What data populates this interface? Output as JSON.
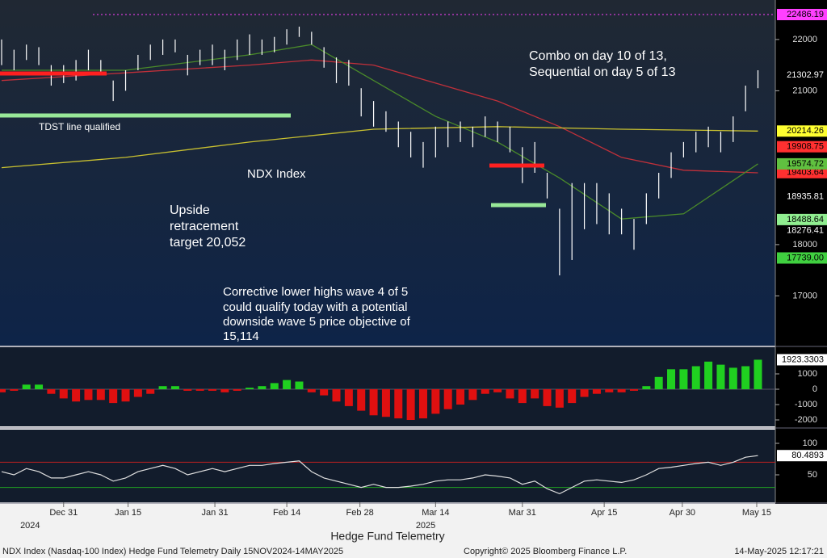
{
  "chart_data": [
    {
      "type": "ohlc",
      "title": "NDX Index",
      "x": [
        0,
        1,
        2,
        3,
        4,
        5,
        6,
        7,
        8,
        9,
        10,
        11,
        12,
        13,
        14,
        15,
        16,
        17,
        18,
        19,
        20,
        21,
        22,
        23,
        24,
        25,
        26,
        27,
        28,
        29,
        30,
        31,
        32,
        33,
        34,
        35,
        36,
        37,
        38,
        39,
        40,
        41,
        42,
        43,
        44,
        45,
        46,
        47,
        48,
        49,
        50,
        51,
        52,
        53,
        54,
        55,
        56,
        57,
        58,
        59,
        60,
        61
      ],
      "high": [
        22000,
        21800,
        21900,
        21850,
        21500,
        21500,
        21600,
        21800,
        21600,
        21200,
        21400,
        21700,
        21900,
        22000,
        22000,
        21700,
        21800,
        21900,
        21800,
        22000,
        22100,
        22000,
        22050,
        22200,
        22250,
        22150,
        21850,
        21650,
        21600,
        21050,
        20800,
        20600,
        20400,
        20200,
        20000,
        20300,
        20400,
        20400,
        20300,
        20500,
        20400,
        20300,
        19900,
        20000,
        19400,
        18700,
        19200,
        19200,
        19200,
        19000,
        18700,
        18500,
        19000,
        19400,
        19800,
        20000,
        20200,
        20300,
        20200,
        20500,
        21100,
        21400
      ],
      "low": [
        21500,
        21400,
        21600,
        21500,
        21100,
        21150,
        21200,
        21400,
        21300,
        20800,
        21000,
        21400,
        21600,
        21700,
        21750,
        21300,
        21500,
        21500,
        21400,
        21600,
        21700,
        21700,
        21750,
        21900,
        22050,
        21900,
        21450,
        21150,
        21100,
        20500,
        20300,
        20200,
        19900,
        19700,
        19500,
        19700,
        19900,
        20000,
        19900,
        20100,
        20000,
        19800,
        19200,
        19400,
        18900,
        17400,
        17700,
        18300,
        18400,
        18200,
        18200,
        17900,
        18400,
        18900,
        19300,
        19700,
        19800,
        19900,
        19800,
        20000,
        20600,
        21050
      ],
      "color": "#ffffff",
      "series": [
        {
          "color": "#c0303a",
          "x": [
            0,
            10,
            20,
            25,
            30,
            40,
            45,
            50,
            55,
            61
          ],
          "values": [
            21200,
            21350,
            21500,
            21600,
            21500,
            20800,
            20300,
            19700,
            19450,
            19400
          ]
        },
        {
          "color": "#4a8a2a",
          "x": [
            0,
            10,
            20,
            25,
            30,
            35,
            40,
            45,
            50,
            55,
            61
          ],
          "values": [
            21400,
            21400,
            21700,
            21900,
            21200,
            20500,
            20000,
            19300,
            18500,
            18600,
            19574.72
          ]
        },
        {
          "color": "#c8c030",
          "x": [
            0,
            10,
            20,
            30,
            40,
            50,
            61
          ],
          "values": [
            19500,
            19700,
            20000,
            20250,
            20300,
            20250,
            20214.26
          ]
        }
      ],
      "ylim": [
        16030,
        22770
      ],
      "yticks": [
        17000,
        18000,
        21000,
        22000
      ],
      "price_labels": [
        {
          "value": 22486.19,
          "label": "22486.19",
          "color": "#ff40ff",
          "text_color": "#000000"
        },
        {
          "value": 21302.97,
          "label": "21302.97",
          "color": "#000000",
          "text_color": "#ffffff"
        },
        {
          "value": 18935.81,
          "label": "18935.81",
          "color": "#000000",
          "text_color": "#ffffff"
        },
        {
          "value": 18276.41,
          "label": "18276.41",
          "color": "#000000",
          "text_color": "#ffffff"
        },
        {
          "value": 19403.64,
          "label": "19403.64",
          "color": "#ff3030",
          "text_color": "#000000"
        },
        {
          "value": 19574.72,
          "label": "19574.72",
          "color": "#60c040",
          "text_color": "#000000"
        },
        {
          "value": 19908.75,
          "label": "19908.75",
          "color": "#ff3030",
          "text_color": "#000000"
        },
        {
          "value": 20214.26,
          "label": "20214.26",
          "color": "#ffff30",
          "text_color": "#000000"
        },
        {
          "value": 18488.64,
          "label": "18488.64",
          "color": "#90ee90",
          "text_color": "#000000"
        },
        {
          "value": 17739.0,
          "label": "17739.00",
          "color": "#40d040",
          "text_color": "#000000"
        }
      ],
      "annotations": [
        "Combo on day 10 of 13,",
        "Sequential on day 5 of 13",
        "Upside",
        "retracement",
        "target 20,052",
        "Corrective lower highs wave 4 of 5",
        "could qualify today with a potential",
        "downside wave 5 price objective of",
        "15,114",
        "TDST line qualified"
      ]
    },
    {
      "type": "bar",
      "x": [
        0,
        1,
        2,
        3,
        4,
        5,
        6,
        7,
        8,
        9,
        10,
        11,
        12,
        13,
        14,
        15,
        16,
        17,
        18,
        19,
        20,
        21,
        22,
        23,
        24,
        25,
        26,
        27,
        28,
        29,
        30,
        31,
        32,
        33,
        34,
        35,
        36,
        37,
        38,
        39,
        40,
        41,
        42,
        43,
        44,
        45,
        46,
        47,
        48,
        49,
        50,
        51,
        52,
        53,
        54,
        55,
        56,
        57,
        58,
        59,
        60,
        61
      ],
      "values": [
        -200,
        -100,
        300,
        300,
        -300,
        -600,
        -800,
        -700,
        -700,
        -900,
        -800,
        -500,
        -300,
        200,
        200,
        -100,
        -100,
        -100,
        -200,
        -100,
        100,
        200,
        400,
        600,
        500,
        -200,
        -400,
        -800,
        -1100,
        -1400,
        -1700,
        -1800,
        -1900,
        -2000,
        -1900,
        -1600,
        -1300,
        -1000,
        -700,
        -300,
        -200,
        -600,
        -900,
        -600,
        -1100,
        -1200,
        -900,
        -500,
        -300,
        -200,
        -200,
        -100,
        200,
        800,
        1300,
        1300,
        1500,
        1800,
        1600,
        1400,
        1500,
        1923.3303
      ],
      "positive_color": "#20d020",
      "negative_color": "#e01010",
      "ylim": [
        -2421,
        2737
      ],
      "yticks": [
        -2000,
        -1000,
        0,
        1000
      ],
      "last_label": "1923.3303"
    },
    {
      "type": "line",
      "x": [
        0,
        1,
        2,
        3,
        4,
        5,
        6,
        7,
        8,
        9,
        10,
        11,
        12,
        13,
        14,
        15,
        16,
        17,
        18,
        19,
        20,
        21,
        22,
        23,
        24,
        25,
        26,
        27,
        28,
        29,
        30,
        31,
        32,
        33,
        34,
        35,
        36,
        37,
        38,
        39,
        40,
        41,
        42,
        43,
        44,
        45,
        46,
        47,
        48,
        49,
        50,
        51,
        52,
        53,
        54,
        55,
        56,
        57,
        58,
        59,
        60,
        61
      ],
      "values": [
        55,
        50,
        60,
        55,
        45,
        45,
        50,
        55,
        50,
        40,
        45,
        55,
        60,
        65,
        60,
        50,
        55,
        60,
        55,
        60,
        65,
        65,
        68,
        70,
        72,
        55,
        45,
        40,
        35,
        30,
        35,
        30,
        30,
        32,
        35,
        40,
        42,
        42,
        45,
        50,
        48,
        45,
        35,
        40,
        28,
        20,
        30,
        40,
        42,
        40,
        38,
        42,
        50,
        60,
        62,
        65,
        68,
        70,
        65,
        70,
        78,
        80.4893
      ],
      "color": "#e0e0e0",
      "hlines": [
        {
          "value": 70,
          "color": "#c02020"
        },
        {
          "value": 30,
          "color": "#20a020"
        }
      ],
      "ylim": [
        6.4,
        121.8
      ],
      "yticks": [
        50,
        100
      ],
      "last_label": "80.4893",
      "xlim": [
        -0.13,
        62.4
      ],
      "xticks": [
        {
          "value": 5,
          "label": "Dec 31"
        },
        {
          "value": 10.2,
          "label": "Jan 15"
        },
        {
          "value": 17.2,
          "label": "Jan 31"
        },
        {
          "value": 23,
          "label": "Feb 14"
        },
        {
          "value": 28.9,
          "label": "Feb 28"
        },
        {
          "value": 35,
          "label": "Mar 14"
        },
        {
          "value": 42,
          "label": "Mar 31"
        },
        {
          "value": 48.6,
          "label": "Apr 15"
        },
        {
          "value": 54.9,
          "label": "Apr 30"
        },
        {
          "value": 60.9,
          "label": "May 15"
        }
      ],
      "year_ticks": [
        {
          "value": 2.3,
          "label": "2024"
        },
        {
          "value": 34.2,
          "label": "2025"
        }
      ]
    }
  ],
  "footer": {
    "center": "Hedge Fund Telemetry",
    "left": "NDX Index (Nasdaq-100 Index) Hedge Fund Telemetry  Daily 15NOV2024-14MAY2025",
    "middle": "Copyright© 2025 Bloomberg Finance L.P.",
    "right": "14-May-2025 12:17:21"
  }
}
